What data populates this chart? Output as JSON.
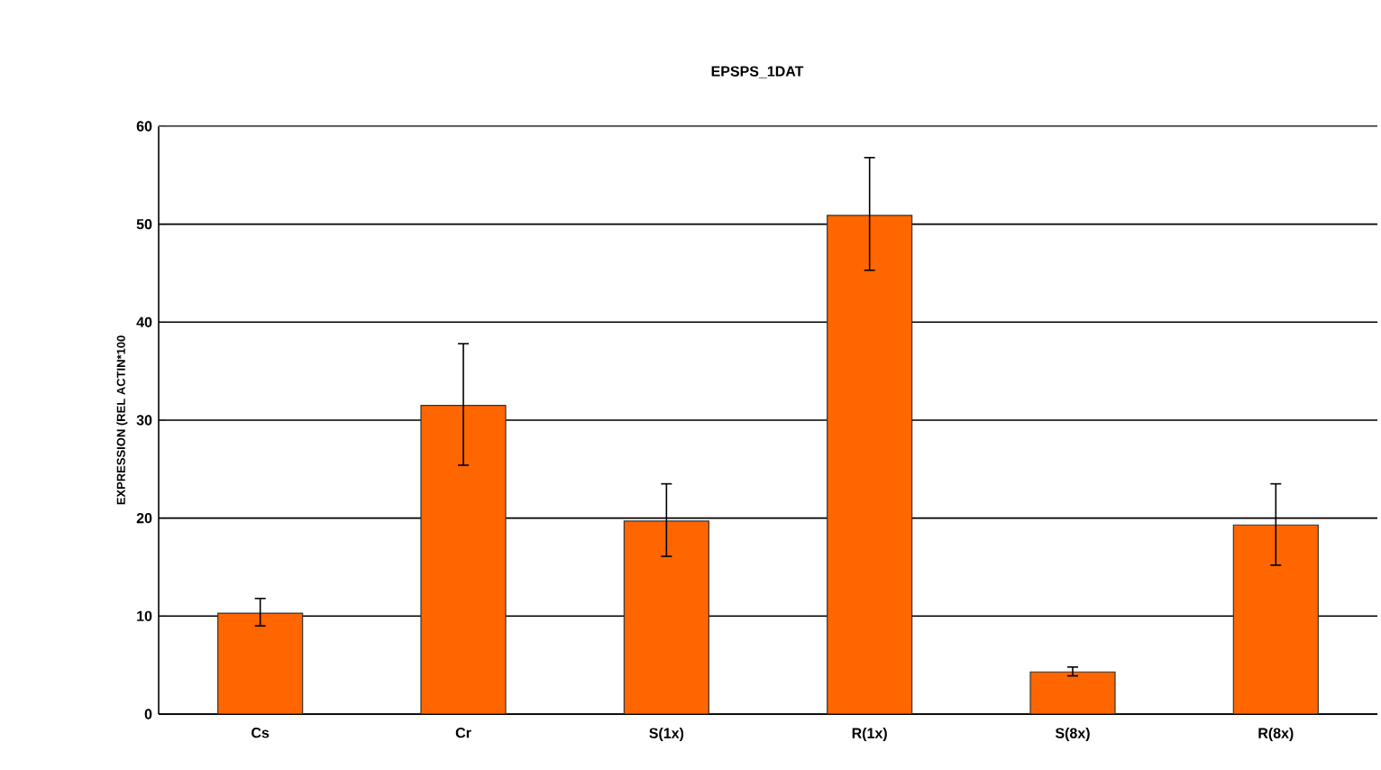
{
  "chart_data": {
    "type": "bar",
    "title": "EPSPS_1DAT",
    "ylabel": "EXPRESSION (REL ACTIN*100",
    "categories": [
      "Cs",
      "Cr",
      "S(1x)",
      "R(1x)",
      "S(8x)",
      "R(8x)"
    ],
    "values": [
      10.3,
      31.5,
      19.7,
      50.9,
      4.3,
      19.3
    ],
    "errors": [
      [
        9.0,
        11.8
      ],
      [
        25.4,
        37.8
      ],
      [
        16.1,
        23.5
      ],
      [
        45.3,
        56.8
      ],
      [
        3.9,
        4.8
      ],
      [
        15.2,
        23.5
      ]
    ],
    "color": "#ff6600",
    "ylim": [
      0,
      60
    ],
    "yticks": [
      0,
      10,
      20,
      30,
      40,
      50,
      60
    ],
    "grid": "y"
  }
}
